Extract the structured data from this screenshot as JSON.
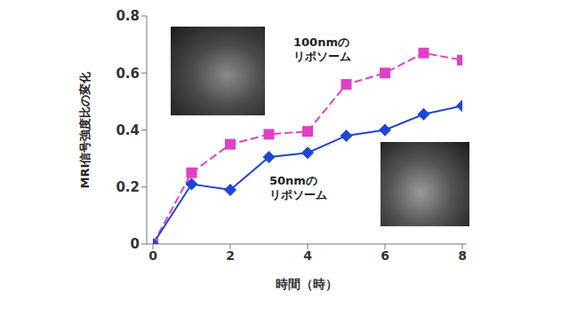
{
  "chart_data": {
    "type": "line",
    "xlabel": "時間（時）",
    "ylabel": "MRI信号強度比の変化",
    "x": [
      0,
      1,
      2,
      3,
      4,
      5,
      6,
      7,
      8
    ],
    "xlim": [
      0,
      8
    ],
    "xticks": [
      0,
      2,
      4,
      6,
      8
    ],
    "ylim": [
      0,
      0.8
    ],
    "yticks": [
      0,
      0.2,
      0.4,
      0.6,
      0.8
    ],
    "grid": false,
    "series": [
      {
        "name": "100nmの\nリポソーム",
        "color": "#e040c8",
        "marker": "square",
        "line_style": "dashed",
        "values": [
          0,
          0.25,
          0.35,
          0.385,
          0.395,
          0.56,
          0.6,
          0.67,
          0.645
        ]
      },
      {
        "name": "50nmの\nリポソーム",
        "color": "#1f45d6",
        "marker": "diamond",
        "line_style": "solid",
        "values": [
          0,
          0.21,
          0.19,
          0.305,
          0.32,
          0.38,
          0.4,
          0.455,
          0.485
        ]
      }
    ]
  }
}
